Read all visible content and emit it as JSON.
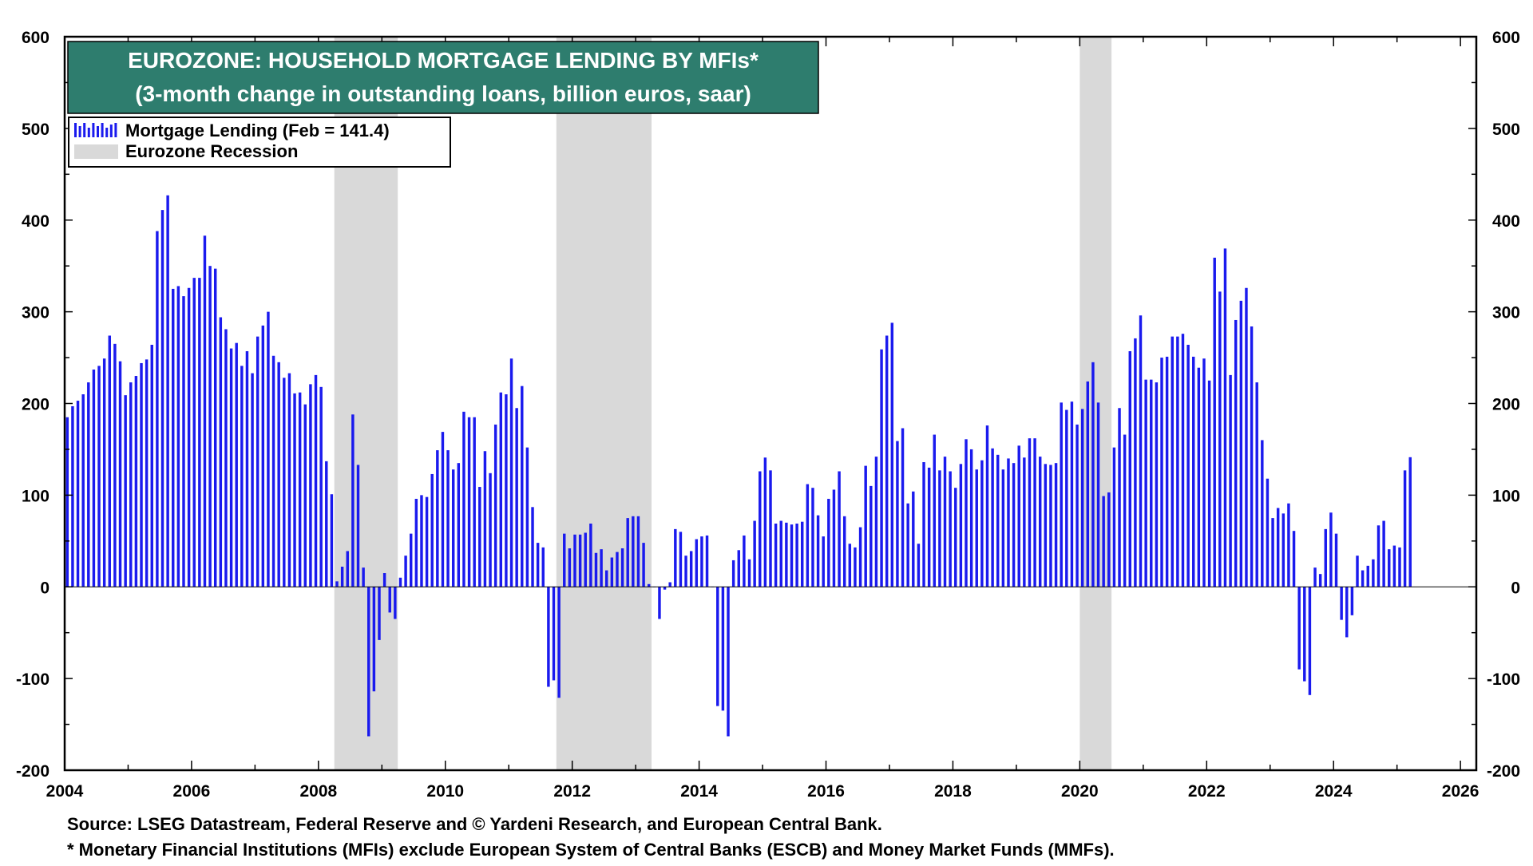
{
  "colors": {
    "bar": "#1a1aee",
    "recession": "#d9d9d9",
    "title_bg": "#2e7d6e",
    "title_text": "#ffffff",
    "axis": "#000000"
  },
  "footnotes": {
    "source": "Source: LSEG Datastream, Federal Reserve and © Yardeni Research, and European Central Bank.",
    "note": "* Monetary Financial Institutions (MFIs) exclude European System of Central Banks (ESCB) and Money Market Funds (MMFs)."
  },
  "chart_data": {
    "type": "bar",
    "title": "EUROZONE: HOUSEHOLD MORTGAGE LENDING BY MFIs*",
    "subtitle": "(3-month change in outstanding loans, billion euros, saar)",
    "legend": {
      "placement": "top-left",
      "entries": [
        "Mortgage Lending (Feb = 141.4)",
        "Eurozone Recession"
      ]
    },
    "xlim": [
      2004,
      2026.25
    ],
    "ylim": [
      -200,
      600
    ],
    "x_ticks": [
      "2004",
      "2006",
      "2008",
      "2010",
      "2012",
      "2014",
      "2016",
      "2018",
      "2020",
      "2022",
      "2024",
      "2026"
    ],
    "y_ticks": [
      "-200",
      "-100",
      "0",
      "100",
      "200",
      "300",
      "400",
      "500",
      "600"
    ],
    "grid": "none",
    "recessions": [
      [
        2008.25,
        2009.25
      ],
      [
        2011.75,
        2013.25
      ],
      [
        2020.0,
        2020.5
      ]
    ],
    "series": [
      {
        "name": "Mortgage Lending",
        "start": "2004-01",
        "frequency": "monthly",
        "values": [
          185,
          197,
          203,
          210,
          223,
          237,
          241,
          249,
          274,
          265,
          246,
          209,
          223,
          230,
          244,
          248,
          264,
          388,
          411,
          427,
          325,
          328,
          317,
          326,
          337,
          337,
          383,
          350,
          347,
          294,
          281,
          260,
          266,
          241,
          257,
          233,
          273,
          285,
          300,
          252,
          245,
          228,
          233,
          211,
          212,
          199,
          221,
          231,
          218,
          137,
          101,
          6,
          22,
          39,
          188,
          133,
          21,
          -163,
          -114,
          -58,
          15,
          -28,
          -35,
          10,
          34,
          58,
          96,
          100,
          98,
          123,
          149,
          169,
          149,
          128,
          135,
          191,
          185,
          185,
          109,
          148,
          124,
          177,
          212,
          210,
          249,
          195,
          219,
          152,
          87,
          48,
          43,
          -109,
          -102,
          -121,
          58,
          42,
          57,
          57,
          59,
          69,
          37,
          41,
          18,
          32,
          38,
          42,
          75,
          77,
          77,
          48,
          3,
          0,
          -35,
          -3,
          5,
          63,
          60,
          34,
          39,
          52,
          55,
          56,
          0,
          -130,
          -135,
          -163,
          29,
          40,
          56,
          30,
          72,
          126,
          141,
          127,
          69,
          72,
          70,
          68,
          69,
          71,
          112,
          108,
          78,
          55,
          96,
          106,
          126,
          77,
          47,
          43,
          65,
          132,
          110,
          142,
          259,
          274,
          288,
          159,
          173,
          91,
          104,
          47,
          136,
          130,
          166,
          127,
          142,
          126,
          108,
          134,
          161,
          150,
          128,
          138,
          176,
          151,
          144,
          128,
          140,
          135,
          154,
          141,
          162,
          162,
          142,
          134,
          133,
          135,
          201,
          193,
          202,
          177,
          194,
          224,
          245,
          201,
          99,
          103,
          152,
          195,
          166,
          257,
          271,
          296,
          226,
          226,
          223,
          250,
          251,
          273,
          273,
          276,
          264,
          251,
          239,
          249,
          225,
          359,
          322,
          369,
          231,
          291,
          312,
          326,
          284,
          223,
          160,
          118,
          75,
          86,
          80,
          91,
          61,
          -90,
          -103,
          -118,
          21,
          14,
          63,
          81,
          58,
          -36,
          -55,
          -31,
          34,
          18,
          23,
          30,
          67,
          72,
          41,
          45,
          43,
          127,
          141.4
        ]
      }
    ]
  }
}
